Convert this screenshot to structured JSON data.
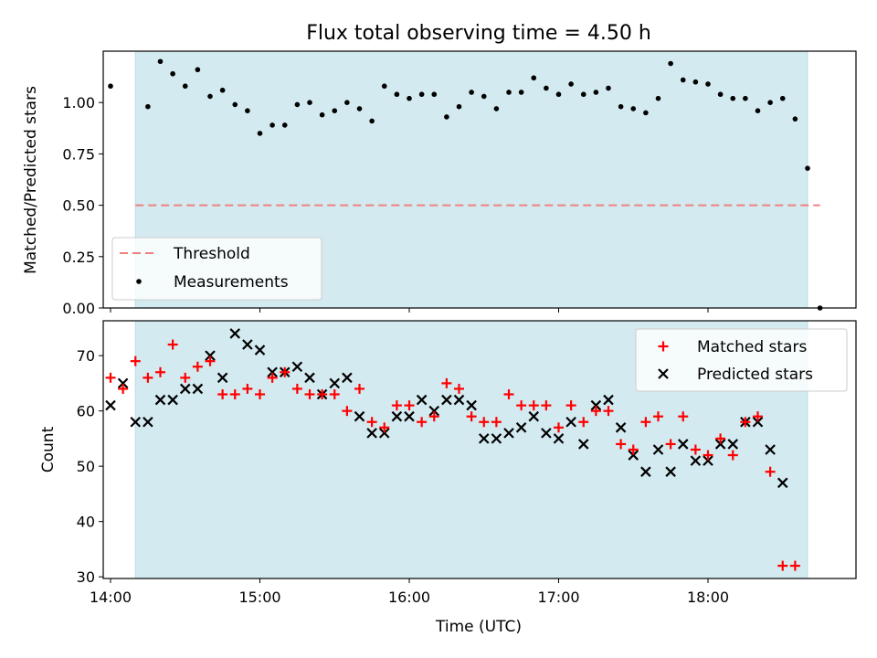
{
  "title": "Flux total observing time = 4.50 h",
  "colors": {
    "shade": "#d3eaf0",
    "threshold": "#f08080",
    "matched": "#ff0000",
    "predicted": "#000000",
    "measurement": "#000000"
  },
  "chart_data": [
    {
      "type": "scatter",
      "ylabel": "Matched/Predicted stars",
      "ylim": [
        0,
        1.25
      ],
      "yticks": [
        "0.00",
        "0.25",
        "0.50",
        "0.75",
        "1.00"
      ],
      "shaded_span": [
        "14:10",
        "18:40"
      ],
      "threshold": {
        "name": "Threshold",
        "value": 0.5,
        "x_range": [
          "14:10",
          "18:45"
        ]
      },
      "legend": {
        "position": "lower-left",
        "entries": [
          "Threshold",
          "Measurements"
        ]
      },
      "series": [
        {
          "name": "Measurements",
          "points": [
            [
              "14:00",
              1.08
            ],
            [
              "14:15",
              0.98
            ],
            [
              "14:20",
              1.2
            ],
            [
              "14:25",
              1.14
            ],
            [
              "14:30",
              1.08
            ],
            [
              "14:35",
              1.16
            ],
            [
              "14:40",
              1.03
            ],
            [
              "14:45",
              1.06
            ],
            [
              "14:50",
              0.99
            ],
            [
              "14:55",
              0.96
            ],
            [
              "15:00",
              0.85
            ],
            [
              "15:05",
              0.89
            ],
            [
              "15:10",
              0.89
            ],
            [
              "15:15",
              0.99
            ],
            [
              "15:20",
              1.0
            ],
            [
              "15:25",
              0.94
            ],
            [
              "15:30",
              0.96
            ],
            [
              "15:35",
              1.0
            ],
            [
              "15:40",
              0.97
            ],
            [
              "15:45",
              0.91
            ],
            [
              "15:50",
              1.08
            ],
            [
              "15:55",
              1.04
            ],
            [
              "16:00",
              1.02
            ],
            [
              "16:05",
              1.04
            ],
            [
              "16:10",
              1.04
            ],
            [
              "16:15",
              0.93
            ],
            [
              "16:20",
              0.98
            ],
            [
              "16:25",
              1.05
            ],
            [
              "16:30",
              1.03
            ],
            [
              "16:35",
              0.97
            ],
            [
              "16:40",
              1.05
            ],
            [
              "16:45",
              1.05
            ],
            [
              "16:50",
              1.12
            ],
            [
              "16:55",
              1.07
            ],
            [
              "17:00",
              1.04
            ],
            [
              "17:05",
              1.09
            ],
            [
              "17:10",
              1.04
            ],
            [
              "17:15",
              1.05
            ],
            [
              "17:20",
              1.07
            ],
            [
              "17:25",
              0.98
            ],
            [
              "17:30",
              0.97
            ],
            [
              "17:35",
              0.95
            ],
            [
              "17:40",
              1.02
            ],
            [
              "17:45",
              1.19
            ],
            [
              "17:50",
              1.11
            ],
            [
              "17:55",
              1.1
            ],
            [
              "18:00",
              1.09
            ],
            [
              "18:05",
              1.04
            ],
            [
              "18:10",
              1.02
            ],
            [
              "18:15",
              1.02
            ],
            [
              "18:20",
              0.96
            ],
            [
              "18:25",
              1.0
            ],
            [
              "18:30",
              1.02
            ],
            [
              "18:35",
              0.92
            ],
            [
              "18:40",
              0.68
            ],
            [
              "18:45",
              0.0
            ]
          ]
        }
      ]
    },
    {
      "type": "scatter",
      "xlabel": "Time (UTC)",
      "ylabel": "Count",
      "ylim": [
        29.7,
        76.3
      ],
      "yticks": [
        "30",
        "40",
        "50",
        "60",
        "70"
      ],
      "xticks": [
        "14:00",
        "15:00",
        "16:00",
        "17:00",
        "18:00"
      ],
      "shaded_span": [
        "14:10",
        "18:40"
      ],
      "legend": {
        "position": "upper-right",
        "entries": [
          "Matched stars",
          "Predicted stars"
        ]
      },
      "series": [
        {
          "name": "Matched stars",
          "points": [
            [
              "14:00",
              66
            ],
            [
              "14:05",
              64
            ],
            [
              "14:10",
              69
            ],
            [
              "14:15",
              66
            ],
            [
              "14:20",
              67
            ],
            [
              "14:25",
              72
            ],
            [
              "14:30",
              66
            ],
            [
              "14:35",
              68
            ],
            [
              "14:40",
              69
            ],
            [
              "14:45",
              63
            ],
            [
              "14:50",
              63
            ],
            [
              "14:55",
              64
            ],
            [
              "15:00",
              63
            ],
            [
              "15:05",
              66
            ],
            [
              "15:10",
              67
            ],
            [
              "15:15",
              64
            ],
            [
              "15:20",
              63
            ],
            [
              "15:25",
              63
            ],
            [
              "15:30",
              63
            ],
            [
              "15:35",
              60
            ],
            [
              "15:40",
              64
            ],
            [
              "15:45",
              58
            ],
            [
              "15:50",
              57
            ],
            [
              "15:55",
              61
            ],
            [
              "16:00",
              61
            ],
            [
              "16:05",
              58
            ],
            [
              "16:10",
              59
            ],
            [
              "16:15",
              65
            ],
            [
              "16:20",
              64
            ],
            [
              "16:25",
              59
            ],
            [
              "16:30",
              58
            ],
            [
              "16:35",
              58
            ],
            [
              "16:40",
              63
            ],
            [
              "16:45",
              61
            ],
            [
              "16:50",
              61
            ],
            [
              "16:55",
              61
            ],
            [
              "17:00",
              57
            ],
            [
              "17:05",
              61
            ],
            [
              "17:10",
              58
            ],
            [
              "17:15",
              60
            ],
            [
              "17:20",
              60
            ],
            [
              "17:25",
              54
            ],
            [
              "17:30",
              53
            ],
            [
              "17:35",
              58
            ],
            [
              "17:40",
              59
            ],
            [
              "17:45",
              54
            ],
            [
              "17:50",
              59
            ],
            [
              "17:55",
              53
            ],
            [
              "18:00",
              52
            ],
            [
              "18:05",
              55
            ],
            [
              "18:10",
              52
            ],
            [
              "18:15",
              58
            ],
            [
              "18:20",
              59
            ],
            [
              "18:25",
              49
            ],
            [
              "18:30",
              32
            ],
            [
              "18:35",
              32
            ]
          ]
        },
        {
          "name": "Predicted stars",
          "points": [
            [
              "14:00",
              61
            ],
            [
              "14:05",
              65
            ],
            [
              "14:10",
              58
            ],
            [
              "14:15",
              58
            ],
            [
              "14:20",
              62
            ],
            [
              "14:25",
              62
            ],
            [
              "14:30",
              64
            ],
            [
              "14:35",
              64
            ],
            [
              "14:40",
              70
            ],
            [
              "14:45",
              66
            ],
            [
              "14:50",
              74
            ],
            [
              "14:55",
              72
            ],
            [
              "15:00",
              71
            ],
            [
              "15:05",
              67
            ],
            [
              "15:10",
              67
            ],
            [
              "15:15",
              68
            ],
            [
              "15:20",
              66
            ],
            [
              "15:25",
              63
            ],
            [
              "15:30",
              65
            ],
            [
              "15:35",
              66
            ],
            [
              "15:40",
              59
            ],
            [
              "15:45",
              56
            ],
            [
              "15:50",
              56
            ],
            [
              "15:55",
              59
            ],
            [
              "16:00",
              59
            ],
            [
              "16:05",
              62
            ],
            [
              "16:10",
              60
            ],
            [
              "16:15",
              62
            ],
            [
              "16:20",
              62
            ],
            [
              "16:25",
              61
            ],
            [
              "16:30",
              55
            ],
            [
              "16:35",
              55
            ],
            [
              "16:40",
              56
            ],
            [
              "16:45",
              57
            ],
            [
              "16:50",
              59
            ],
            [
              "16:55",
              56
            ],
            [
              "17:00",
              55
            ],
            [
              "17:05",
              58
            ],
            [
              "17:10",
              54
            ],
            [
              "17:15",
              61
            ],
            [
              "17:20",
              62
            ],
            [
              "17:25",
              57
            ],
            [
              "17:30",
              52
            ],
            [
              "17:35",
              49
            ],
            [
              "17:40",
              53
            ],
            [
              "17:45",
              49
            ],
            [
              "17:50",
              54
            ],
            [
              "17:55",
              51
            ],
            [
              "18:00",
              51
            ],
            [
              "18:05",
              54
            ],
            [
              "18:10",
              54
            ],
            [
              "18:15",
              58
            ],
            [
              "18:20",
              58
            ],
            [
              "18:25",
              53
            ],
            [
              "18:30",
              47
            ]
          ]
        }
      ]
    }
  ]
}
